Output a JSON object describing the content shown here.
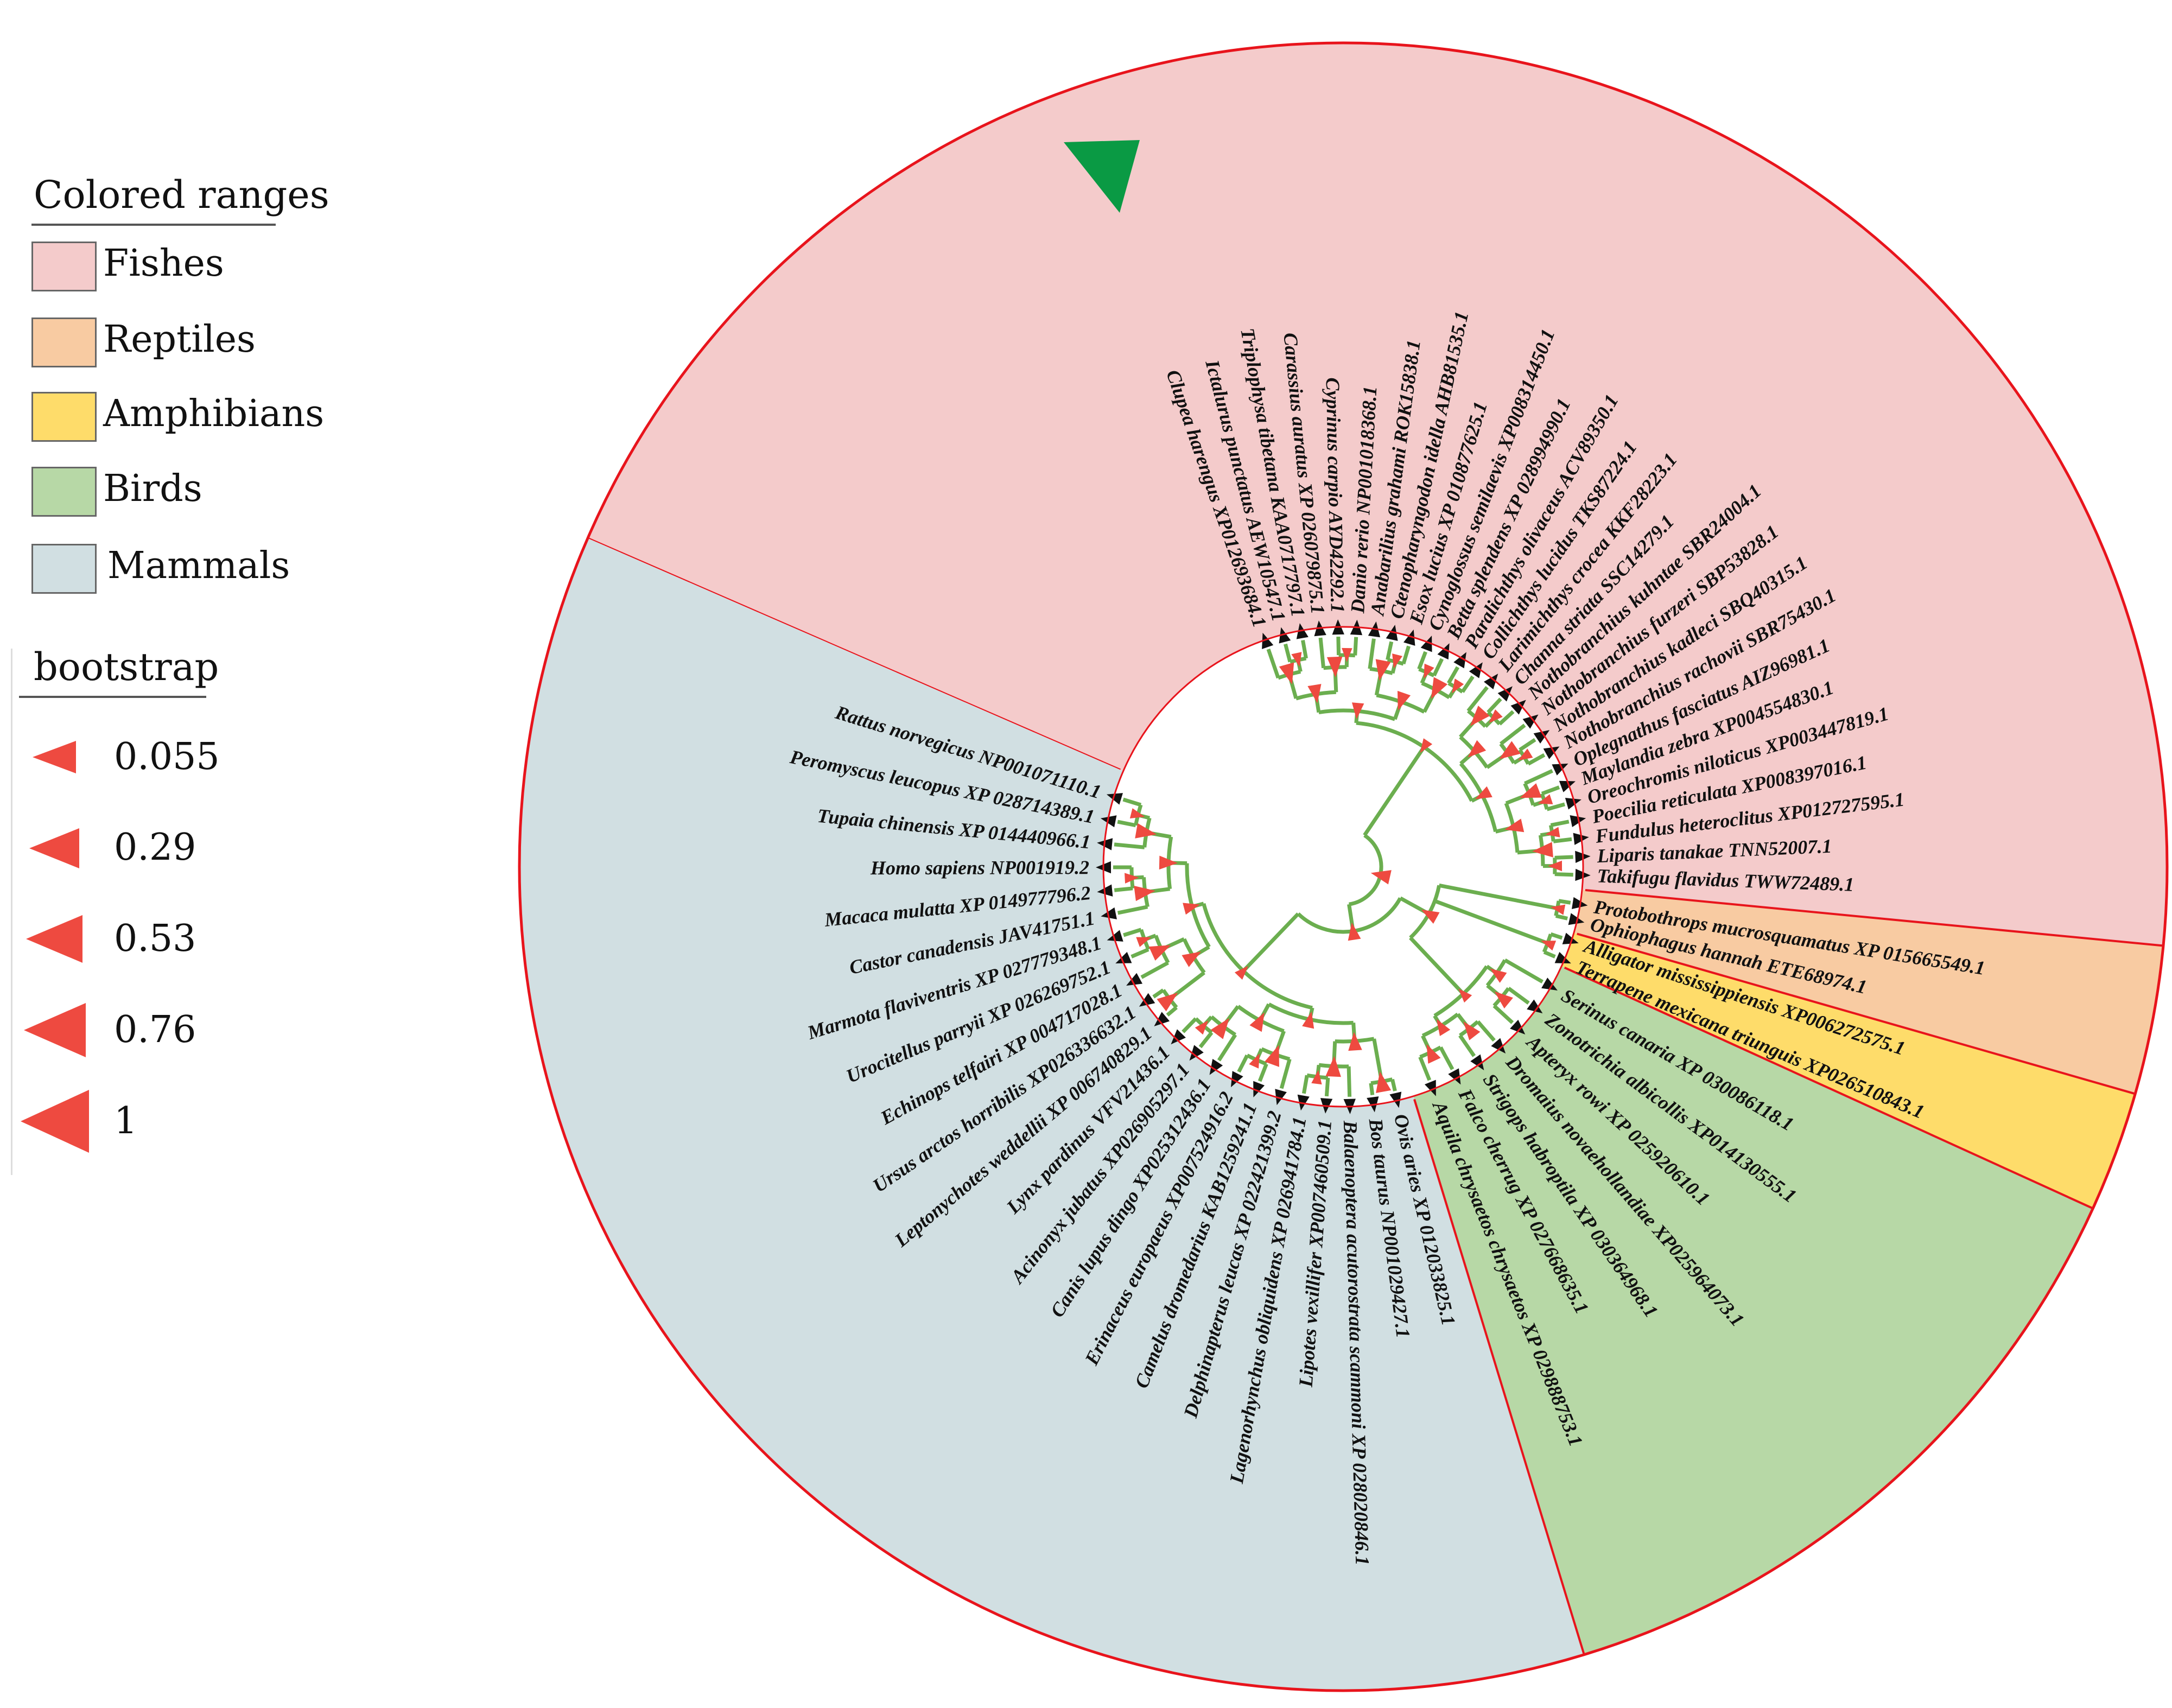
{
  "legend": {
    "ranges_title": "Colored ranges",
    "ranges": [
      {
        "label": "Fishes",
        "color": "#f4cbcb"
      },
      {
        "label": "Reptiles",
        "color": "#f8cba2"
      },
      {
        "label": "Amphibians",
        "color": "#fedc6a"
      },
      {
        "label": "Birds",
        "color": "#b7d8a6"
      },
      {
        "label": "Mammals",
        "color": "#d1dfe2"
      }
    ],
    "bootstrap_title": "bootstrap",
    "bootstrap": [
      {
        "value": "0.055"
      },
      {
        "value": "0.29"
      },
      {
        "value": "0.53"
      },
      {
        "value": "0.76"
      },
      {
        "value": "1"
      }
    ]
  },
  "colors": {
    "boundary": "#e8141c",
    "branch": "#6bae4f",
    "node_marker": "#ee4a40",
    "tip_marker": "#111111",
    "highlight": "#0a9a44"
  },
  "highlight_marker": "green-triangle-pointing-at-leaf",
  "groups": [
    {
      "name": "Fishes",
      "leaves": [
        "Takifugu flavidus TWW72489.1",
        "Liparis tanakae TNN52007.1",
        "Fundulus heteroclitus XP012727595.1",
        "Poecilia reticulata XP008397016.1",
        "Oreochromis niloticus XP003447819.1",
        "Maylandia zebra XP004554830.1",
        "Oplegnathus fasciatus AIZ96981.1",
        "Nothobranchius rachovii SBR75430.1",
        "Nothobranchius kadleci SBQ40315.1",
        "Nothobranchius furzeri SBP53828.1",
        "Nothobranchius kuhntae SBR24004.1",
        "Channa striata SSC14279.1",
        "Larimichthys crocea KKF28223.1",
        "Collichthys lucidus TKS87224.1",
        "Paralichthys olivaceus ACV89350.1",
        "Betta splendens XP 028994990.1",
        "Cynoglossus semilaevis XP008314450.1",
        "Esox lucius XP 010877625.1",
        "Ctenopharyngodon idella AHB81535.1",
        "Anabarilius grahami ROK15838.1",
        "Danio rerio NP001018368.1",
        "Cyprinus carpio AYD42292.1",
        "Carassius auratus XP 026079875.1",
        "Triplophysa tibetana KAA0717797.1",
        "Ictalurus punctatus AEW10547.1",
        "Clupea harengus XP012693684.1"
      ]
    },
    {
      "name": "Mammals",
      "leaves": [
        "Rattus norvegicus NP001071110.1",
        "Peromyscus leucopus XP 028714389.1",
        "Tupaia chinensis XP 014440966.1",
        "Homo sapiens NP001919.2",
        "Macaca mulatta XP 014977796.2",
        "Castor canadensis JAV41751.1",
        "Marmota flaviventris XP 027779348.1",
        "Urocitellus parryii XP 026269752.1",
        "Echinops telfairi XP 004717028.1",
        "Ursus arctos horribilis XP026336632.1",
        "Leptonychotes weddellii XP 006740829.1",
        "Lynx pardinus VFV21436.1",
        "Acinonyx jubatus XP026905297.1",
        "Canis lupus dingo XP025312436.1",
        "Erinaceus europaeus XP007524916.2",
        "Camelus dromedarius KAB1259241.1",
        "Delphinapterus leucas XP 022421399.2",
        "Lagenorhynchus obliquidens XP 026941784.1",
        "Lipotes vexillifer XP007460509.1",
        "Balaenoptera acutorostrata scammoni XP 028020846.1",
        "Bos taurus NP001029427.1",
        "Ovis aries XP 012033825.1"
      ]
    },
    {
      "name": "Birds",
      "leaves": [
        "Aquila chrysaetos chrysaetos XP 029888753.1",
        "Falco cherrug XP 027668635.1",
        "Strigops habroptila XP 030364968.1",
        "Dromaius novaehollandiae XP025964073.1",
        "Apteryx rowi XP 025920610.1",
        "Zonotrichia albicollis XP014130555.1",
        "Serinus canaria XP 030086118.1"
      ]
    },
    {
      "name": "Amphibians",
      "leaves": [
        "Terrapene mexicana triunguis XP026510843.1",
        "Alligator mississippiensis XP006272575.1"
      ]
    },
    {
      "name": "Reptiles",
      "leaves": [
        "Ophiophagus hannah ETE68974.1",
        "Protobothrops mucrosquamatus XP 015665549.1"
      ]
    }
  ]
}
